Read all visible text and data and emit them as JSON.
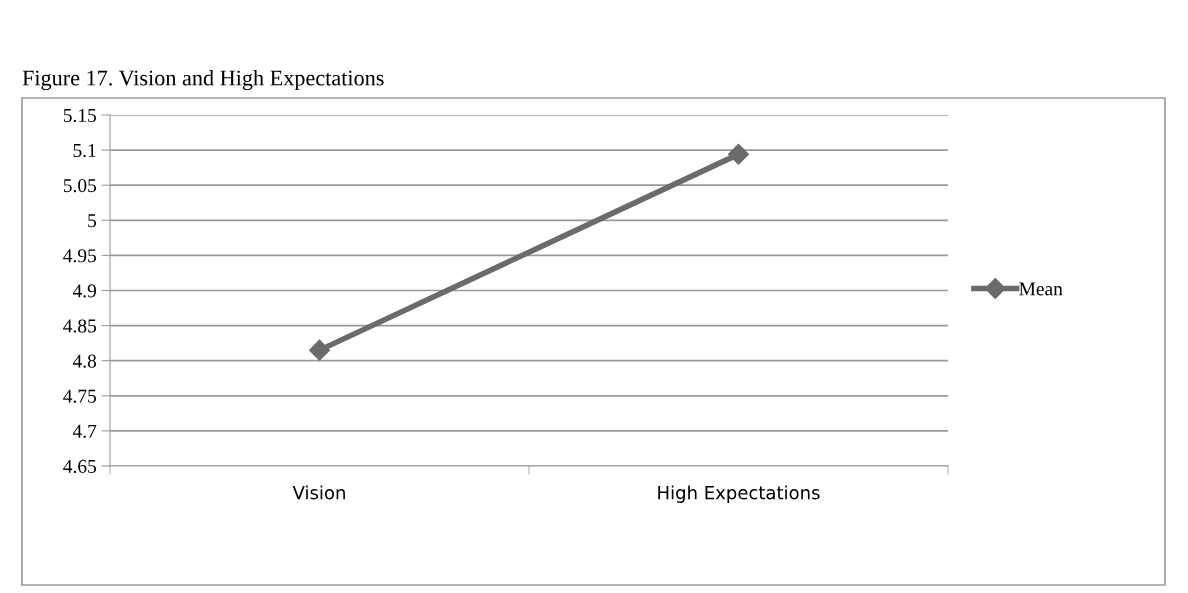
{
  "chart_data": {
    "type": "line",
    "title": "Figure 17. Vision and High Expectations",
    "categories": [
      "Vision",
      "High Expectations"
    ],
    "series": [
      {
        "name": "Mean",
        "color": "#6b6b6b",
        "values": [
          4.815,
          5.094
        ]
      }
    ],
    "ylim": [
      4.65,
      5.15
    ],
    "yticks": [
      4.65,
      4.7,
      4.75,
      4.8,
      4.85,
      4.9,
      4.95,
      5,
      5.05,
      5.1,
      5.15
    ],
    "grid": "y",
    "legend": "right",
    "marker": "diamond",
    "line_style": "solid"
  }
}
